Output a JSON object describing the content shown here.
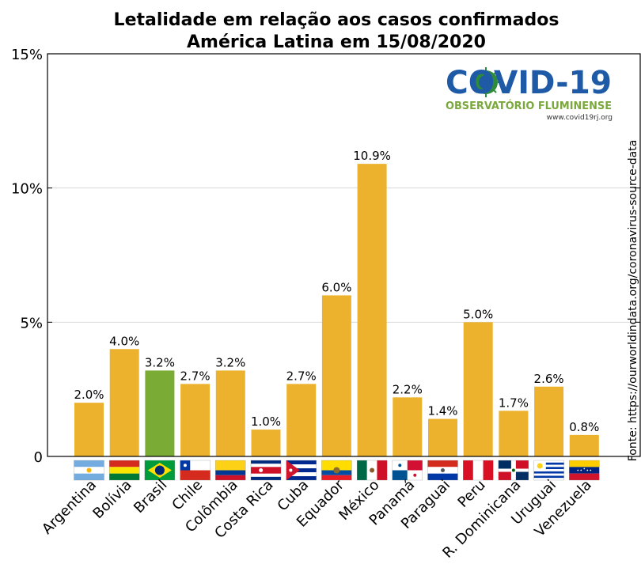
{
  "chart_data": {
    "type": "bar",
    "title_line1": "Letalidade em relação aos casos confirmados",
    "title_line2": "América Latina em 15/08/2020",
    "source": "Fonte: https://ourworldindata.org/coronavirus-source-data",
    "xlabel": "",
    "ylabel": "",
    "ylim": [
      0,
      15
    ],
    "yticks": [
      0,
      5,
      10,
      15
    ],
    "ytick_labels": [
      "0",
      "5%",
      "10%",
      "15%"
    ],
    "grid": "horizontal",
    "categories": [
      "Argentina",
      "Bolívia",
      "Brasil",
      "Chile",
      "Colômbia",
      "Costa Rica",
      "Cuba",
      "Equador",
      "México",
      "Panamá",
      "Paraguai",
      "Peru",
      "R. Dominicana",
      "Uruguai",
      "Venezuela"
    ],
    "values": [
      2.0,
      4.0,
      3.2,
      2.7,
      3.2,
      1.0,
      2.7,
      6.0,
      10.9,
      2.2,
      1.4,
      5.0,
      1.7,
      2.6,
      0.8
    ],
    "value_labels": [
      "2.0%",
      "4.0%",
      "3.2%",
      "2.7%",
      "3.2%",
      "1.0%",
      "2.7%",
      "6.0%",
      "10.9%",
      "2.2%",
      "1.4%",
      "5.0%",
      "1.7%",
      "2.6%",
      "0.8%"
    ],
    "highlight_category": "Brasil",
    "colors": {
      "bar": "#ecb22e",
      "highlight": "#7aab35",
      "grid": "#d9d9d9"
    }
  },
  "logo": {
    "main": "COVID-19",
    "sub": "OBSERVATÓRIO FLUMINENSE",
    "url": "www.covid19rj.org",
    "colors": {
      "main": "#1f5aa6",
      "sub": "#7aa83a",
      "virus": "#2e8b3a"
    }
  },
  "flags": [
    "argentina-flag",
    "bolivia-flag",
    "brazil-flag",
    "chile-flag",
    "colombia-flag",
    "costa-rica-flag",
    "cuba-flag",
    "ecuador-flag",
    "mexico-flag",
    "panama-flag",
    "paraguay-flag",
    "peru-flag",
    "dominican-republic-flag",
    "uruguay-flag",
    "venezuela-flag"
  ]
}
